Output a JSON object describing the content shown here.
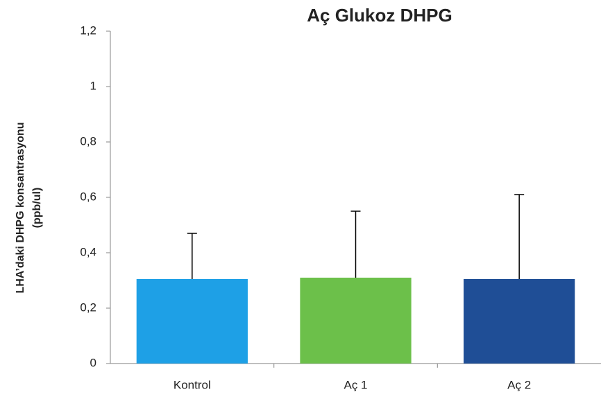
{
  "chart_data": {
    "type": "bar",
    "title": "Aç Glukoz DHPG",
    "ylabel": [
      "LHA’daki DHPG konsantrasyonu",
      "(ppb/ul)"
    ],
    "categories": [
      "Kontrol",
      "Aç 1",
      "Aç 2"
    ],
    "values": [
      0.305,
      0.31,
      0.305
    ],
    "errors": [
      0.165,
      0.24,
      0.305
    ],
    "colors": [
      "#1ea0e6",
      "#6cc04a",
      "#1f4e96"
    ],
    "ylim": [
      0,
      1.2
    ],
    "yticks": [
      0,
      {
        "value": 0.2,
        "label": "0,2"
      },
      {
        "value": 0.4,
        "label": "0,4"
      },
      {
        "value": 0.6,
        "label": "0,6"
      },
      {
        "value": 0.8,
        "label": "0,8"
      },
      1,
      {
        "value": 1.2,
        "label": "1,2"
      }
    ],
    "grid": false
  }
}
